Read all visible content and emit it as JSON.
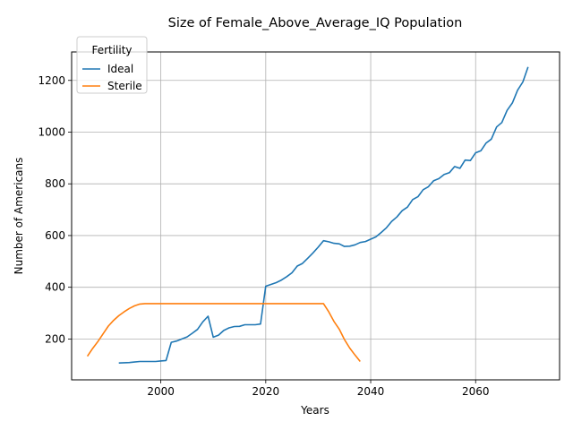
{
  "chart_data": {
    "type": "line",
    "title": "Size of Female_Above_Average_IQ Population",
    "xlabel": "Years",
    "ylabel": "Number of Americans",
    "xlim": [
      1983,
      2076
    ],
    "ylim": [
      42,
      1310
    ],
    "x_ticks": [
      2000,
      2020,
      2040,
      2060
    ],
    "y_ticks": [
      200,
      400,
      600,
      800,
      1000,
      1200
    ],
    "grid": true,
    "legend": {
      "title": "Fertility",
      "placement": "top-left"
    },
    "series": [
      {
        "name": "Ideal",
        "color": "#1f77b4",
        "x": [
          1992,
          1993,
          1994,
          1995,
          1996,
          1997,
          1998,
          1999,
          2000,
          2001,
          2002,
          2003,
          2004,
          2005,
          2006,
          2007,
          2008,
          2009,
          2010,
          2011,
          2012,
          2013,
          2014,
          2015,
          2016,
          2017,
          2018,
          2019,
          2020,
          2021,
          2022,
          2023,
          2024,
          2025,
          2026,
          2027,
          2028,
          2029,
          2030,
          2031,
          2032,
          2033,
          2034,
          2035,
          2036,
          2037,
          2038,
          2039,
          2040,
          2041,
          2042,
          2043,
          2044,
          2045,
          2046,
          2047,
          2048,
          2049,
          2050,
          2051,
          2052,
          2053,
          2054,
          2055,
          2056,
          2057,
          2058,
          2059,
          2060,
          2061,
          2062,
          2063,
          2064,
          2065,
          2066,
          2067,
          2068,
          2069,
          2070
        ],
        "values": [
          107,
          108,
          109,
          111,
          113,
          113,
          113,
          113,
          115,
          117,
          187,
          192,
          200,
          208,
          222,
          237,
          266,
          288,
          207,
          215,
          233,
          243,
          248,
          249,
          255,
          255,
          255,
          258,
          404,
          411,
          418,
          428,
          441,
          456,
          482,
          492,
          512,
          533,
          555,
          580,
          576,
          570,
          568,
          558,
          559,
          564,
          573,
          577,
          586,
          595,
          612,
          630,
          655,
          672,
          696,
          710,
          739,
          750,
          777,
          789,
          812,
          820,
          836,
          843,
          867,
          860,
          892,
          890,
          920,
          928,
          958,
          973,
          1020,
          1037,
          1084,
          1113,
          1162,
          1194,
          1252
        ]
      },
      {
        "name": "Sterile",
        "color": "#ff7f0e",
        "x": [
          1986,
          1987,
          1988,
          1989,
          1990,
          1991,
          1992,
          1993,
          1994,
          1995,
          1996,
          1997,
          1998,
          1999,
          2000,
          2001,
          2002,
          2003,
          2004,
          2005,
          2006,
          2007,
          2008,
          2009,
          2010,
          2011,
          2012,
          2013,
          2014,
          2015,
          2016,
          2017,
          2018,
          2019,
          2020,
          2021,
          2022,
          2023,
          2024,
          2025,
          2026,
          2027,
          2028,
          2029,
          2030,
          2031,
          2032,
          2033,
          2034,
          2035,
          2036,
          2037,
          2038
        ],
        "values": [
          133,
          163,
          190,
          220,
          250,
          272,
          290,
          305,
          318,
          328,
          335,
          337,
          337,
          337,
          337,
          337,
          337,
          337,
          337,
          337,
          337,
          337,
          337,
          337,
          337,
          337,
          337,
          337,
          337,
          337,
          337,
          337,
          337,
          337,
          337,
          337,
          337,
          337,
          337,
          337,
          337,
          337,
          337,
          337,
          337,
          337,
          305,
          268,
          238,
          198,
          165,
          138,
          113
        ]
      }
    ]
  }
}
